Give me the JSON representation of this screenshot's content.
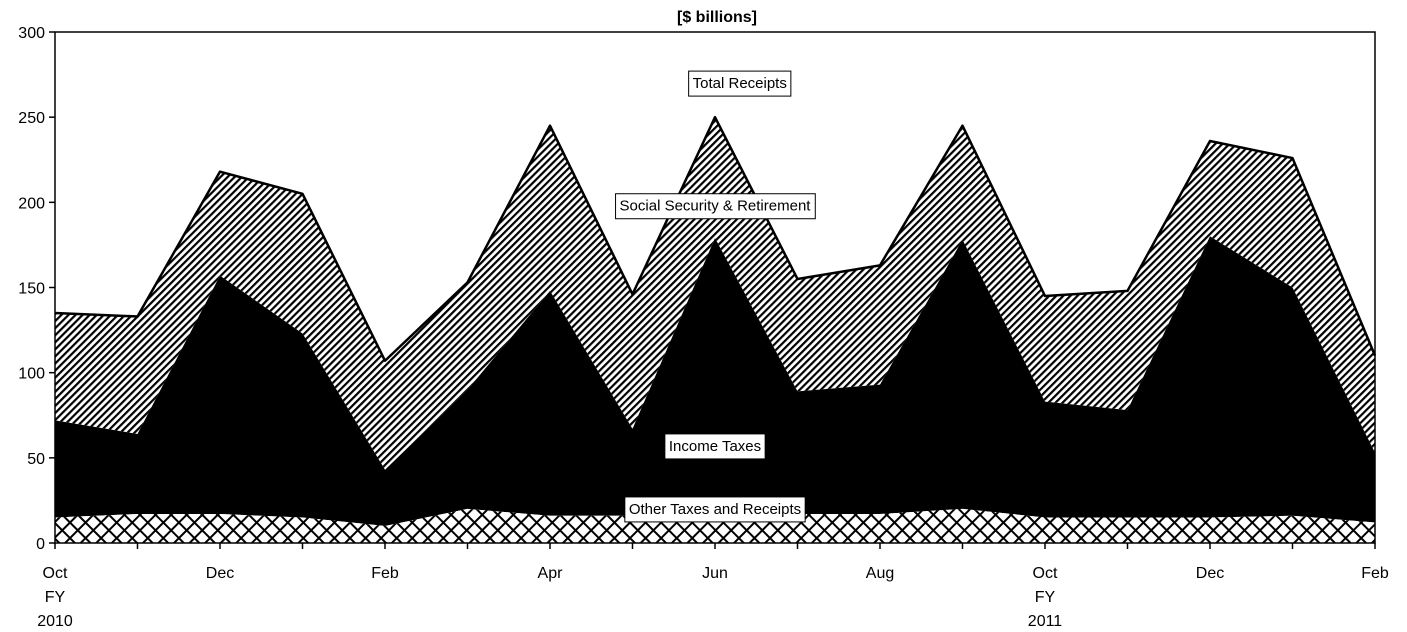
{
  "chart_data": {
    "type": "area",
    "stacked": true,
    "title": "[$ billions]",
    "xlabel": "",
    "ylabel": "",
    "ylim": [
      0,
      300
    ],
    "y_ticks": [
      0,
      50,
      100,
      150,
      200,
      250,
      300
    ],
    "grid": false,
    "legend": "none",
    "x": [
      "Oct 2009",
      "Nov 2009",
      "Dec 2009",
      "Jan 2010",
      "Feb 2010",
      "Mar 2010",
      "Apr 2010",
      "May 2010",
      "Jun 2010",
      "Jul 2010",
      "Aug 2010",
      "Sep 2010",
      "Oct 2010",
      "Nov 2010",
      "Dec 2010",
      "Jan 2011",
      "Feb 2011"
    ],
    "x_tick_labels": [
      {
        "index": 0,
        "lines": [
          "Oct",
          "FY",
          "2010"
        ]
      },
      {
        "index": 2,
        "lines": [
          "Dec"
        ]
      },
      {
        "index": 4,
        "lines": [
          "Feb"
        ]
      },
      {
        "index": 6,
        "lines": [
          "Apr"
        ]
      },
      {
        "index": 8,
        "lines": [
          "Jun"
        ]
      },
      {
        "index": 10,
        "lines": [
          "Aug"
        ]
      },
      {
        "index": 12,
        "lines": [
          "Oct",
          "FY",
          "2011"
        ]
      },
      {
        "index": 14,
        "lines": [
          "Dec"
        ]
      },
      {
        "index": 16,
        "lines": [
          "Feb"
        ]
      }
    ],
    "series": [
      {
        "name": "Other Taxes and Receipts",
        "values": [
          15,
          17,
          17,
          15,
          10,
          20,
          16,
          16,
          17,
          17,
          17,
          20,
          15,
          15,
          15,
          16,
          12
        ]
      },
      {
        "name": "Income Taxes",
        "values": [
          72,
          64,
          157,
          123,
          43,
          90,
          148,
          67,
          179,
          89,
          93,
          178,
          83,
          78,
          180,
          150,
          53
        ]
      },
      {
        "name": "Social Security & Retirement",
        "values": [
          135,
          133,
          218,
          205,
          107,
          153,
          245,
          146,
          250,
          155,
          163,
          245,
          145,
          148,
          236,
          226,
          110
        ]
      },
      {
        "name": "Total Receipts",
        "values": [
          135,
          133,
          218,
          205,
          107,
          153,
          245,
          146,
          250,
          155,
          163,
          245,
          145,
          148,
          236,
          226,
          110
        ]
      }
    ],
    "value_mode": "cumulative",
    "annotations": [
      {
        "text": "Total Receipts",
        "x_index": 8.3,
        "y": 270
      },
      {
        "text": "Social Security & Retirement",
        "x_index": 8.0,
        "y": 198
      },
      {
        "text": "Income Taxes",
        "x_index": 8.0,
        "y": 57
      },
      {
        "text": "Other Taxes and Receipts",
        "x_index": 8.0,
        "y": 20
      }
    ],
    "colors": {
      "income": "#000000",
      "line": "#000000",
      "background": "#ffffff"
    }
  }
}
